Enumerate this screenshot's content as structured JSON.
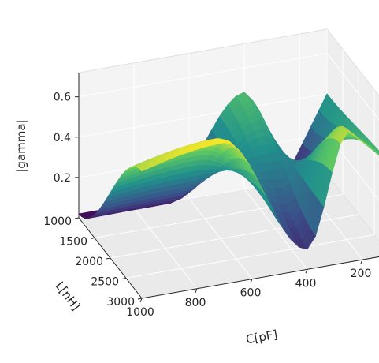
{
  "chart_data": {
    "type": "surface",
    "title": "",
    "zlabel": "|gamma|",
    "xlabel": "C[pF]",
    "ylabel": "L[nH]",
    "x_ticks": [
      1000,
      800,
      600,
      400,
      200
    ],
    "y_ticks": [
      1000,
      1500,
      2000,
      2500,
      3000
    ],
    "z_ticks": [
      0.2,
      0.4,
      0.6
    ],
    "xlim": [
      100,
      1000
    ],
    "ylim": [
      1000,
      3000
    ],
    "zlim": [
      0.0,
      0.72
    ],
    "grid": true,
    "colormap": [
      "#440154",
      "#3b528b",
      "#21918c",
      "#5ec962",
      "#fde725"
    ],
    "surface_anchors": [
      {
        "C": 1000,
        "L": 1000,
        "gamma": 0.02
      },
      {
        "C": 1000,
        "L": 2000,
        "gamma": 0.35
      },
      {
        "C": 1000,
        "L": 3000,
        "gamma": 0.63
      },
      {
        "C": 700,
        "L": 3000,
        "gamma": 0.7
      },
      {
        "C": 400,
        "L": 1000,
        "gamma": 0.48
      },
      {
        "C": 400,
        "L": 3000,
        "gamma": 0.1
      },
      {
        "C": 250,
        "L": 1000,
        "gamma": 0.02
      },
      {
        "C": 250,
        "L": 3000,
        "gamma": 0.65
      },
      {
        "C": 100,
        "L": 1000,
        "gamma": 0.4
      },
      {
        "C": 100,
        "L": 3000,
        "gamma": 0.45
      }
    ]
  }
}
